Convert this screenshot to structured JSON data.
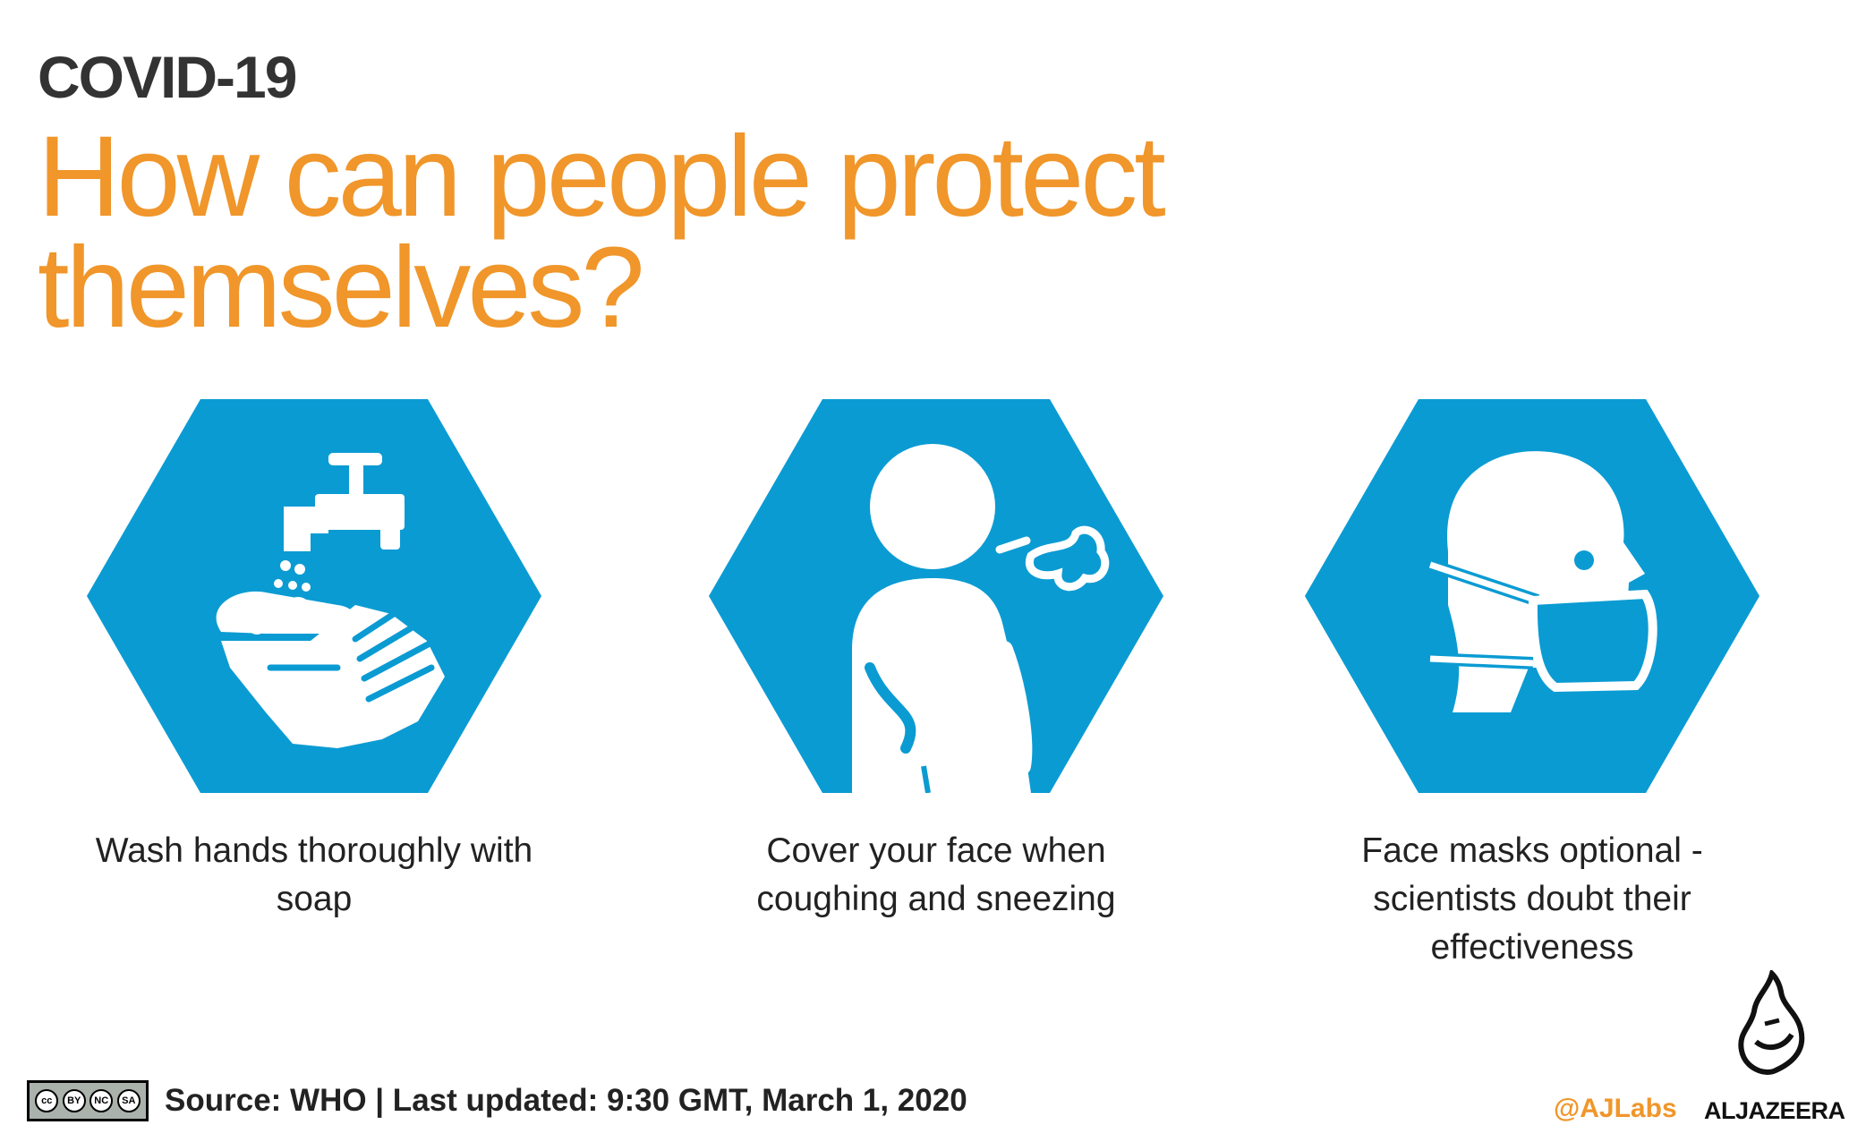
{
  "header": {
    "kicker": "COVID-19",
    "title": "How can people protect themselves?"
  },
  "cards": [
    {
      "icon": "handwash-icon",
      "caption": "Wash hands thoroughly with soap"
    },
    {
      "icon": "cough-icon",
      "caption": "Cover your face when coughing and sneezing"
    },
    {
      "icon": "face-mask-icon",
      "caption": "Face masks optional - scientists doubt their effectiveness"
    }
  ],
  "footer": {
    "license_icon": "cc-by-nc-sa-icon",
    "license_text": [
      "cc",
      "BY",
      "NC",
      "SA"
    ],
    "source": "Source: WHO  |  Last updated: 9:30 GMT, March 1, 2020",
    "handle": "@AJLabs",
    "brand": "ALJAZEERA"
  },
  "colors": {
    "accent": "#f0962a",
    "hexagon": "#0b9bd3",
    "text": "#222222"
  }
}
